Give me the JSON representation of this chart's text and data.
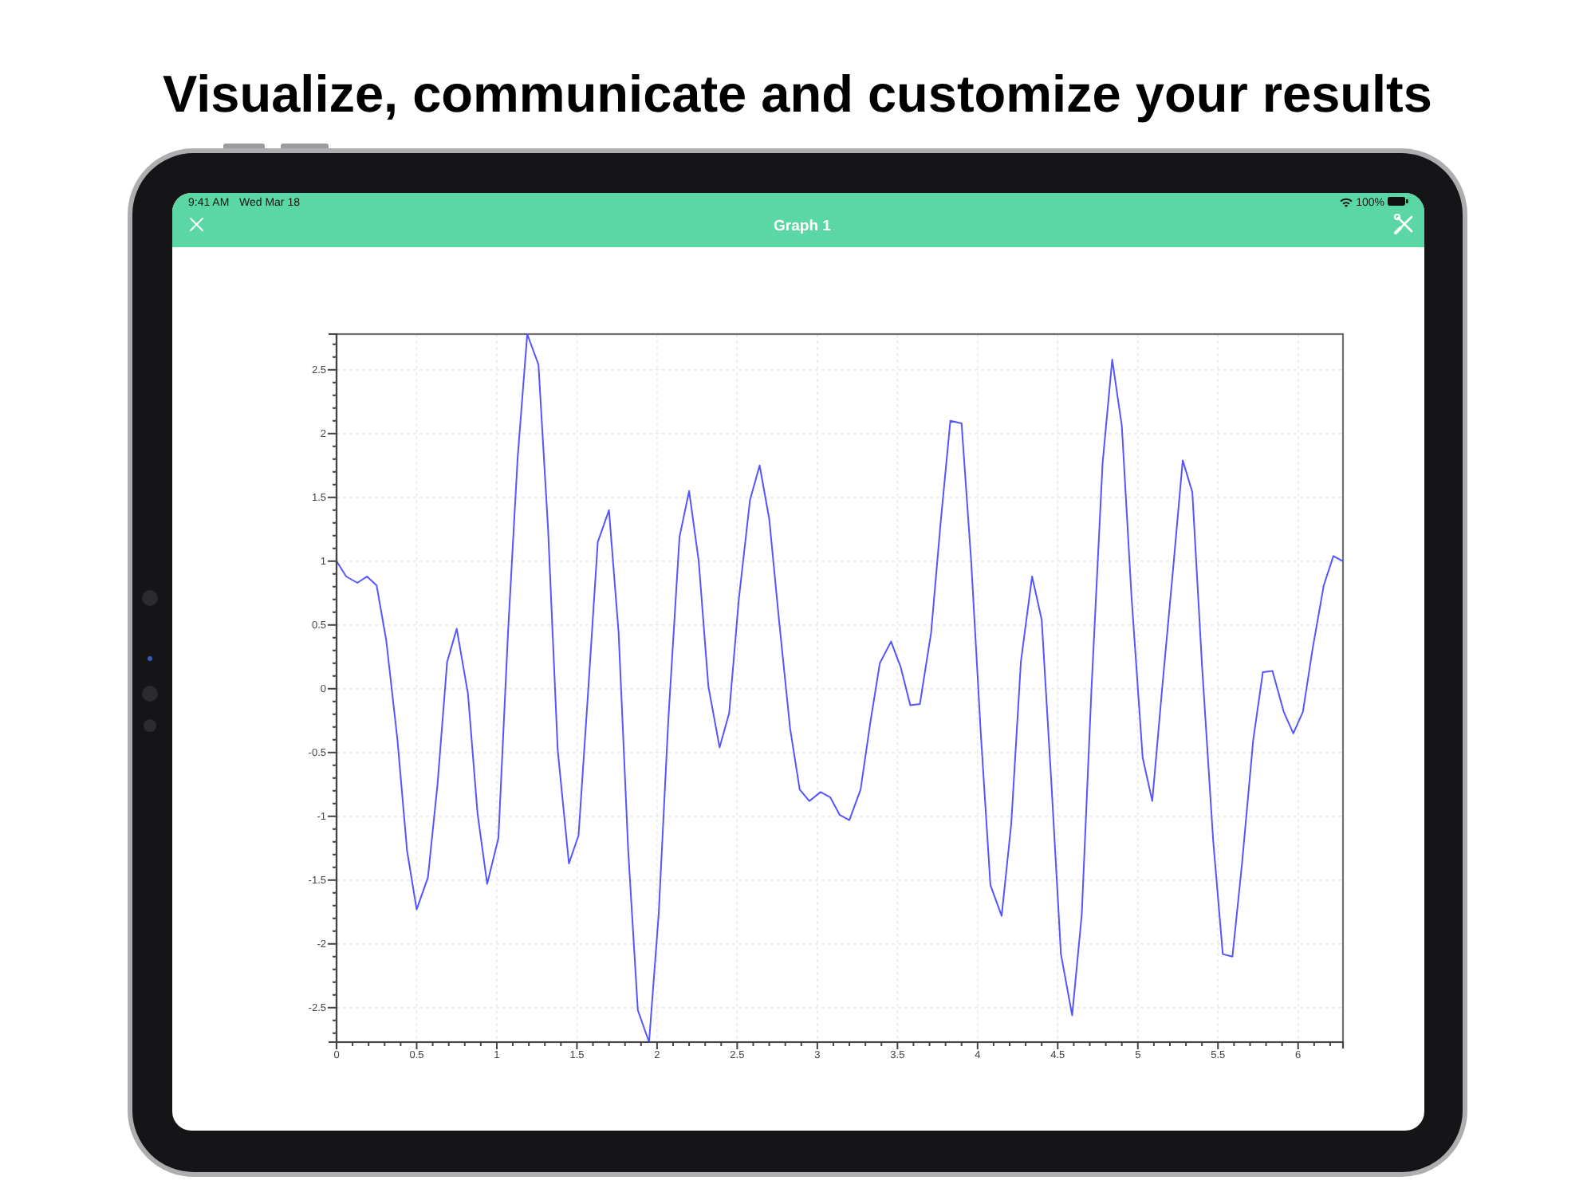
{
  "chart_data": {
    "type": "line",
    "title": "Graph 1",
    "annotations": [
      "Visualize, communicate and customize your results",
      "9:41 AM",
      "Wed Mar 18",
      "100%"
    ],
    "x": [
      0,
      0.06,
      0.13,
      0.19,
      0.25,
      0.31,
      0.38,
      0.44,
      0.5,
      0.57,
      0.63,
      0.69,
      0.75,
      0.82,
      0.88,
      0.94,
      1.01,
      1.07,
      1.13,
      1.19,
      1.26,
      1.32,
      1.38,
      1.45,
      1.51,
      1.57,
      1.63,
      1.7,
      1.76,
      1.82,
      1.88,
      1.95,
      2.01,
      2.07,
      2.14,
      2.2,
      2.26,
      2.32,
      2.39,
      2.45,
      2.51,
      2.58,
      2.64,
      2.7,
      2.76,
      2.83,
      2.89,
      2.95,
      3.02,
      3.08,
      3.14,
      3.2,
      3.27,
      3.33,
      3.39,
      3.46,
      3.52,
      3.58,
      3.64,
      3.71,
      3.77,
      3.83,
      3.9,
      3.96,
      4.02,
      4.08,
      4.15,
      4.21,
      4.27,
      4.34,
      4.4,
      4.46,
      4.52,
      4.59,
      4.65,
      4.71,
      4.78,
      4.84,
      4.9,
      4.96,
      5.03,
      5.09,
      5.15,
      5.22,
      5.28,
      5.34,
      5.4,
      5.47,
      5.53,
      5.59,
      5.65,
      5.72,
      5.78,
      5.84,
      5.91,
      5.97,
      6.03,
      6.09,
      6.16,
      6.22,
      6.28
    ],
    "values": [
      1.0,
      0.88,
      0.83,
      0.88,
      0.81,
      0.38,
      -0.4,
      -1.27,
      -1.73,
      -1.48,
      -0.75,
      0.21,
      0.47,
      -0.04,
      -0.98,
      -1.53,
      -1.17,
      0.44,
      1.81,
      2.78,
      2.54,
      1.25,
      -0.48,
      -1.37,
      -1.15,
      -0.02,
      1.15,
      1.4,
      0.44,
      -1.27,
      -2.52,
      -2.77,
      -1.77,
      -0.25,
      1.19,
      1.55,
      1.0,
      0.02,
      -0.46,
      -0.19,
      0.7,
      1.48,
      1.75,
      1.33,
      0.55,
      -0.31,
      -0.79,
      -0.88,
      -0.81,
      -0.85,
      -0.99,
      -1.03,
      -0.79,
      -0.27,
      0.2,
      0.37,
      0.17,
      -0.13,
      -0.12,
      0.44,
      1.31,
      2.1,
      2.08,
      1.0,
      -0.35,
      -1.54,
      -1.78,
      -1.06,
      0.21,
      0.88,
      0.54,
      -0.73,
      -2.08,
      -2.56,
      -1.77,
      -0.02,
      1.77,
      2.58,
      2.06,
      0.73,
      -0.54,
      -0.88,
      -0.02,
      0.94,
      1.79,
      1.54,
      0.19,
      -1.19,
      -2.08,
      -2.1,
      -1.37,
      -0.4,
      0.13,
      0.14,
      -0.18,
      -0.35,
      -0.18,
      0.31,
      0.81,
      1.04,
      1.0
    ],
    "color": "#5555ff",
    "xlim": [
      0,
      6.28
    ],
    "ylim": [
      -2.77,
      2.78
    ],
    "xticks": [
      0,
      {
        "value": 0.1,
        "label": null
      },
      {
        "value": 0.2,
        "label": null
      },
      {
        "value": 0.3,
        "label": null
      },
      {
        "value": 0.4,
        "label": null
      },
      0.5,
      {
        "value": 0.6,
        "label": null
      },
      {
        "value": 0.7,
        "label": null
      },
      {
        "value": 0.8,
        "label": null
      },
      {
        "value": 0.9,
        "label": null
      },
      1,
      {
        "value": 1.1,
        "label": null
      },
      {
        "value": 1.2,
        "label": null
      },
      {
        "value": 1.3,
        "label": null
      },
      {
        "value": 1.4,
        "label": null
      },
      1.5,
      {
        "value": 1.6,
        "label": null
      },
      {
        "value": 1.7,
        "label": null
      },
      {
        "value": 1.8,
        "label": null
      },
      {
        "value": 1.9,
        "label": null
      },
      2,
      {
        "value": 2.1,
        "label": null
      },
      {
        "value": 2.2,
        "label": null
      },
      {
        "value": 2.3,
        "label": null
      },
      {
        "value": 2.4,
        "label": null
      },
      2.5,
      {
        "value": 2.6,
        "label": null
      },
      {
        "value": 2.7,
        "label": null
      },
      {
        "value": 2.8,
        "label": null
      },
      {
        "value": 2.9,
        "label": null
      },
      3,
      {
        "value": 3.1,
        "label": null
      },
      {
        "value": 3.2,
        "label": null
      },
      {
        "value": 3.3,
        "label": null
      },
      {
        "value": 3.4,
        "label": null
      },
      3.5,
      {
        "value": 3.6,
        "label": null
      },
      {
        "value": 3.7,
        "label": null
      },
      {
        "value": 3.8,
        "label": null
      },
      {
        "value": 3.9,
        "label": null
      },
      4,
      {
        "value": 4.1,
        "label": null
      },
      {
        "value": 4.2,
        "label": null
      },
      {
        "value": 4.3,
        "label": null
      },
      {
        "value": 4.4,
        "label": null
      },
      4.5,
      {
        "value": 4.6,
        "label": null
      },
      {
        "value": 4.7,
        "label": null
      },
      {
        "value": 4.8,
        "label": null
      },
      {
        "value": 4.9,
        "label": null
      },
      5,
      {
        "value": 5.1,
        "label": null
      },
      {
        "value": 5.2,
        "label": null
      },
      {
        "value": 5.3,
        "label": null
      },
      {
        "value": 5.4,
        "label": null
      },
      5.5,
      {
        "value": 5.6,
        "label": null
      },
      {
        "value": 5.7,
        "label": null
      },
      {
        "value": 5.8,
        "label": null
      },
      {
        "value": 5.9,
        "label": null
      },
      6,
      {
        "value": 6.1,
        "label": null
      },
      {
        "value": 6.2,
        "label": null
      }
    ],
    "yticks": [
      {
        "value": -2.7,
        "label": null
      },
      {
        "value": -2.6,
        "label": null
      },
      -2.5,
      {
        "value": -2.4,
        "label": null
      },
      {
        "value": -2.3,
        "label": null
      },
      {
        "value": -2.2,
        "label": null
      },
      {
        "value": -2.1,
        "label": null
      },
      -2,
      {
        "value": -1.9,
        "label": null
      },
      {
        "value": -1.8,
        "label": null
      },
      {
        "value": -1.7,
        "label": null
      },
      {
        "value": -1.6,
        "label": null
      },
      -1.5,
      {
        "value": -1.4,
        "label": null
      },
      {
        "value": -1.3,
        "label": null
      },
      {
        "value": -1.2,
        "label": null
      },
      {
        "value": -1.1,
        "label": null
      },
      -1,
      {
        "value": -0.9,
        "label": null
      },
      {
        "value": -0.8,
        "label": null
      },
      {
        "value": -0.7,
        "label": null
      },
      {
        "value": -0.6,
        "label": null
      },
      -0.5,
      {
        "value": -0.4,
        "label": null
      },
      {
        "value": -0.3,
        "label": null
      },
      {
        "value": -0.2,
        "label": null
      },
      {
        "value": -0.1,
        "label": null
      },
      0,
      {
        "value": 0.1,
        "label": null
      },
      {
        "value": 0.2,
        "label": null
      },
      {
        "value": 0.3,
        "label": null
      },
      {
        "value": 0.4,
        "label": null
      },
      0.5,
      {
        "value": 0.6,
        "label": null
      },
      {
        "value": 0.7,
        "label": null
      },
      {
        "value": 0.8,
        "label": null
      },
      {
        "value": 0.9,
        "label": null
      },
      1,
      {
        "value": 1.1,
        "label": null
      },
      {
        "value": 1.2,
        "label": null
      },
      {
        "value": 1.3,
        "label": null
      },
      {
        "value": 1.4,
        "label": null
      },
      1.5,
      {
        "value": 1.6,
        "label": null
      },
      {
        "value": 1.7,
        "label": null
      },
      {
        "value": 1.8,
        "label": null
      },
      {
        "value": 1.9,
        "label": null
      },
      2,
      {
        "value": 2.1,
        "label": null
      },
      {
        "value": 2.2,
        "label": null
      },
      {
        "value": 2.3,
        "label": null
      },
      {
        "value": 2.4,
        "label": null
      },
      2.5,
      {
        "value": 2.6,
        "label": null
      },
      {
        "value": 2.7,
        "label": null
      }
    ],
    "grid": true
  }
}
